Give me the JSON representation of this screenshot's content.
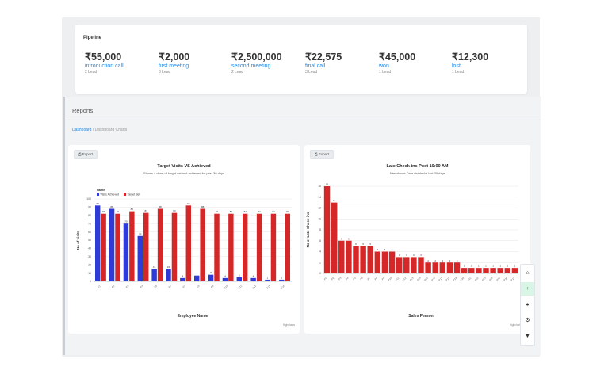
{
  "pipeline": {
    "title": "Pipeline",
    "stages": [
      {
        "amount": "₹55,000",
        "name": "introduction call",
        "leads": "2 Lead"
      },
      {
        "amount": "₹2,000",
        "name": "first meeting",
        "leads": "3 Lead"
      },
      {
        "amount": "₹2,500,000",
        "name": "second meeting",
        "leads": "2 Lead"
      },
      {
        "amount": "₹22,575",
        "name": "final call",
        "leads": "3 Lead"
      },
      {
        "amount": "₹45,000",
        "name": "won",
        "leads": "1 Lead"
      },
      {
        "amount": "₹12,300",
        "name": "lost",
        "leads": "1 Lead"
      }
    ]
  },
  "reports": {
    "title": "Reports",
    "breadcrumb": {
      "home": "Dashboard",
      "separator": "/",
      "current": "Dashboard Charts"
    }
  },
  "export_label": "Export",
  "colors": {
    "blue": "#2f3bd6",
    "red": "#d62728",
    "link": "#1e88e5"
  },
  "chart_data": [
    {
      "type": "bar",
      "title": "Target Visits VS Achieved",
      "subtitle": "Shows a chart of target set and achieved for past 30 days",
      "xlabel": "Employee Name",
      "ylabel": "No of visits",
      "legend_title": "Name",
      "ylim": [
        0,
        100
      ],
      "yticks": [
        0,
        10,
        20,
        30,
        40,
        50,
        60,
        70,
        80,
        90,
        100
      ],
      "categories": [
        "E1",
        "E2",
        "E3",
        "E4",
        "E5",
        "E6",
        "E7",
        "E8",
        "E9",
        "E10",
        "E11",
        "E12",
        "E13",
        "E14"
      ],
      "series": [
        {
          "name": "Visits Achieved",
          "color": "#2f3bd6",
          "values": [
            92,
            88,
            70,
            55,
            15,
            15,
            4,
            7,
            8,
            4,
            5,
            4,
            2,
            2
          ]
        },
        {
          "name": "Target Set",
          "color": "#d62728",
          "values": [
            82,
            82,
            85,
            83,
            88,
            83,
            92,
            88,
            82,
            82,
            82,
            82,
            82,
            82
          ]
        }
      ],
      "credit": "Highcharts"
    },
    {
      "type": "bar",
      "title": "Late Check-ins Post 10:00 AM",
      "subtitle": "Attendance Data visible for last 30 days",
      "xlabel": "Sales Person",
      "ylabel": "No of Late Check-ins",
      "ylim": [
        0,
        16
      ],
      "yticks": [
        0,
        2,
        4,
        6,
        8,
        10,
        12,
        14,
        16
      ],
      "categories": [
        "P1",
        "P2",
        "P3",
        "P4",
        "P5",
        "P6",
        "P7",
        "P8",
        "P9",
        "P10",
        "P11",
        "P12",
        "P13",
        "P14",
        "P15",
        "P16",
        "P17",
        "P18",
        "P19",
        "P20",
        "P21",
        "P22",
        "P23",
        "P24",
        "P25",
        "P26",
        "P27"
      ],
      "series": [
        {
          "name": "Late Check-ins",
          "color": "#d62728",
          "values": [
            16,
            13,
            6,
            6,
            5,
            5,
            5,
            4,
            4,
            4,
            3,
            3,
            3,
            3,
            2,
            2,
            2,
            2,
            2,
            1,
            1,
            1,
            1,
            1,
            1,
            1,
            1
          ]
        }
      ],
      "credit": "Highcharts"
    }
  ],
  "toolbar": {
    "icons": [
      "home-icon",
      "plus-icon",
      "chat-icon",
      "settings-icon",
      "chevron-down-icon"
    ],
    "glyphs": [
      "⌂",
      "+",
      "●",
      "⚙",
      "▼"
    ]
  }
}
